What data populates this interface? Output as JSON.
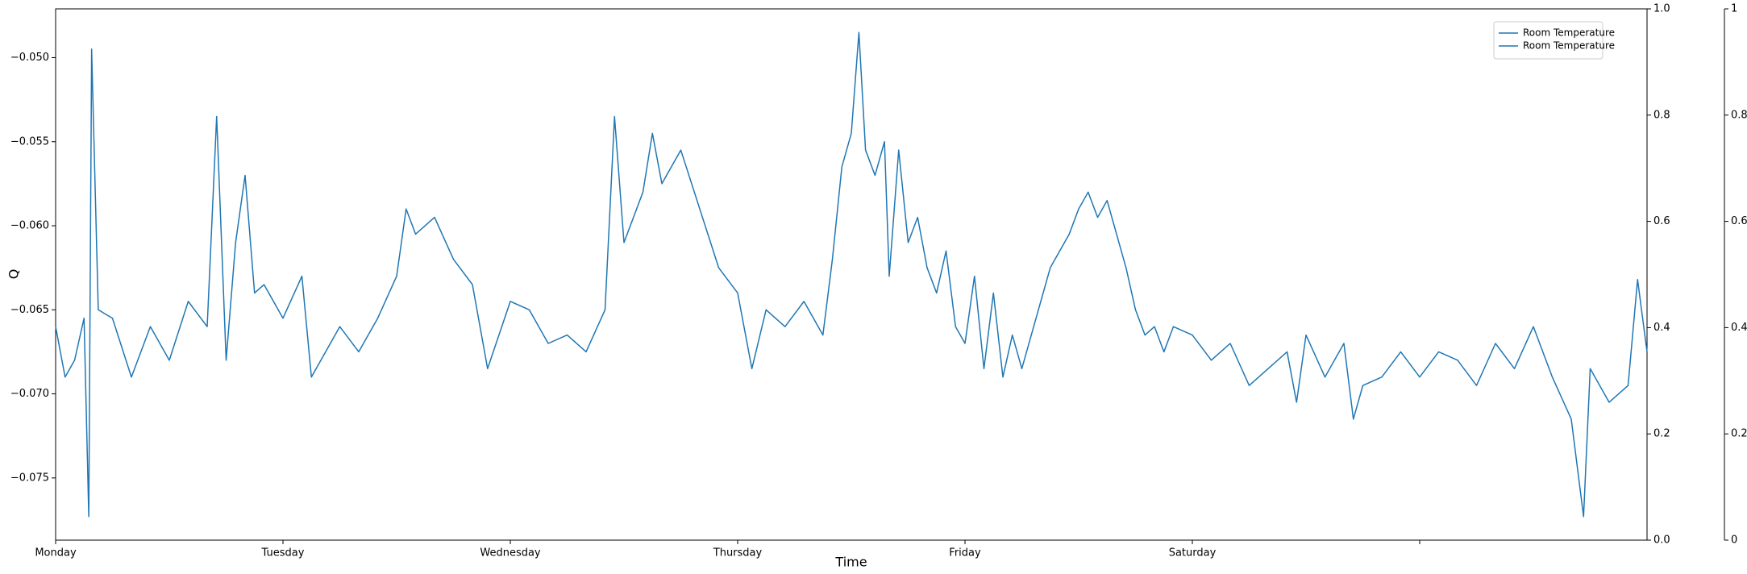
{
  "chart_data": {
    "type": "line",
    "xlabel": "Time",
    "ylabel": "Q",
    "xlim": [
      0,
      168
    ],
    "xticks": [
      {
        "value": 0,
        "label": "Monday"
      },
      {
        "value": 24,
        "label": "Tuesday"
      },
      {
        "value": 48,
        "label": "Wednesday"
      },
      {
        "value": 72,
        "label": "Thursday"
      },
      {
        "value": 96,
        "label": "Friday"
      },
      {
        "value": 120,
        "label": "Saturday"
      },
      {
        "value": 144,
        "label": null
      }
    ],
    "ylim": [
      -0.0787,
      -0.0471
    ],
    "yticks": [
      {
        "value": -0.075,
        "label": "−0.075"
      },
      {
        "value": -0.07,
        "label": "−0.070"
      },
      {
        "value": -0.065,
        "label": "−0.065"
      },
      {
        "value": -0.06,
        "label": "−0.060"
      },
      {
        "value": -0.055,
        "label": "−0.055"
      },
      {
        "value": -0.05,
        "label": "−0.050"
      }
    ],
    "y2lim": [
      0,
      1
    ],
    "y2ticks": [
      {
        "value": 0,
        "label": "0.0"
      },
      0.2,
      0.4,
      0.6,
      0.8,
      {
        "value": 1,
        "label": "1.0"
      }
    ],
    "y3lim": [
      0,
      1
    ],
    "y3ticks": [
      0,
      0.2,
      0.4,
      0.6,
      0.8,
      1
    ],
    "legend": "upper right",
    "series": [
      {
        "name": "Room Temperature",
        "color": "#1f77b4",
        "x": [
          0,
          1,
          2,
          3,
          3.5,
          3.8,
          4.5,
          6,
          8,
          10,
          12,
          14,
          16,
          17,
          18,
          19,
          20,
          21,
          22,
          24,
          26,
          27,
          30,
          32,
          34,
          36,
          37,
          38,
          40,
          42,
          44,
          45.6,
          48,
          50,
          52,
          54,
          56,
          58,
          59,
          60,
          62,
          63,
          64,
          66,
          68,
          70,
          72,
          73.5,
          75,
          77,
          79,
          81,
          82,
          83,
          84,
          84.8,
          85.5,
          86.5,
          87.5,
          88,
          89,
          90,
          91,
          92,
          93,
          94,
          95,
          96,
          97,
          98,
          99,
          100,
          101,
          102,
          103,
          104,
          105,
          106,
          107,
          108,
          109,
          110,
          111,
          112,
          113,
          114,
          115,
          116,
          117,
          118,
          120,
          122,
          124,
          126,
          128,
          130,
          131,
          132,
          134,
          136,
          137,
          138,
          140,
          142,
          144,
          146,
          148,
          150,
          152,
          154,
          156,
          158,
          160,
          161.3,
          162,
          164,
          166,
          167,
          168
        ],
        "values": [
          -0.066,
          -0.069,
          -0.068,
          -0.0655,
          -0.0773,
          -0.0495,
          -0.065,
          -0.0655,
          -0.069,
          -0.066,
          -0.068,
          -0.0645,
          -0.066,
          -0.0535,
          -0.068,
          -0.061,
          -0.057,
          -0.064,
          -0.0635,
          -0.0655,
          -0.063,
          -0.069,
          -0.066,
          -0.0675,
          -0.0655,
          -0.063,
          -0.059,
          -0.0605,
          -0.0595,
          -0.062,
          -0.0635,
          -0.0685,
          -0.0645,
          -0.065,
          -0.067,
          -0.0665,
          -0.0675,
          -0.065,
          -0.0535,
          -0.061,
          -0.058,
          -0.0545,
          -0.0575,
          -0.0555,
          -0.059,
          -0.0625,
          -0.064,
          -0.0685,
          -0.065,
          -0.066,
          -0.0645,
          -0.0665,
          -0.062,
          -0.0565,
          -0.0545,
          -0.0485,
          -0.0555,
          -0.057,
          -0.055,
          -0.063,
          -0.0555,
          -0.061,
          -0.0595,
          -0.0625,
          -0.064,
          -0.0615,
          -0.066,
          -0.067,
          -0.063,
          -0.0685,
          -0.064,
          -0.069,
          -0.0665,
          -0.0685,
          -0.0665,
          -0.0645,
          -0.0625,
          -0.0615,
          -0.0605,
          -0.059,
          -0.058,
          -0.0595,
          -0.0585,
          -0.0605,
          -0.0625,
          -0.065,
          -0.0665,
          -0.066,
          -0.0675,
          -0.066,
          -0.0665,
          -0.068,
          -0.067,
          -0.0695,
          -0.0685,
          -0.0675,
          -0.0705,
          -0.0665,
          -0.069,
          -0.067,
          -0.0715,
          -0.0695,
          -0.069,
          -0.0675,
          -0.069,
          -0.0675,
          -0.068,
          -0.0695,
          -0.067,
          -0.0685,
          -0.066,
          -0.069,
          -0.0715,
          -0.0773,
          -0.0685,
          -0.0705,
          -0.0695,
          -0.0632,
          -0.0675
        ]
      },
      {
        "name": "Room Temperature",
        "color": "#1f77b4",
        "axis": "y2",
        "x": [],
        "values": []
      }
    ]
  }
}
